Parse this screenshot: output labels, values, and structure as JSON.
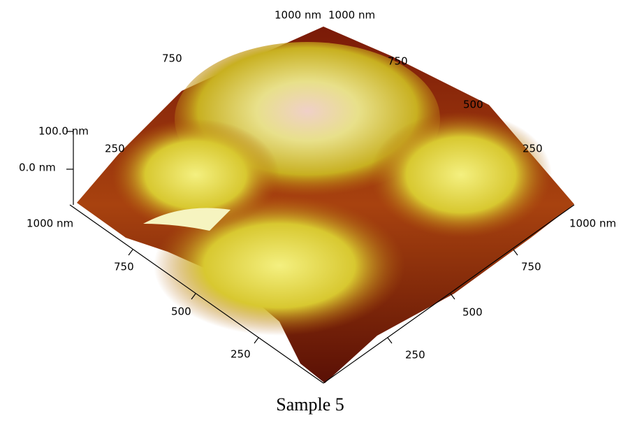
{
  "caption": "Sample 5",
  "z_axis": {
    "ticks": [
      "100.0 nm",
      "0.0 nm"
    ]
  },
  "front_left_axis": {
    "ticks": [
      "1000 nm",
      "750",
      "500",
      "250"
    ]
  },
  "front_right_axis": {
    "ticks": [
      "1000 nm",
      "750",
      "500",
      "250"
    ]
  },
  "back_left_axis": {
    "ticks": [
      "1000 nm",
      "750",
      "250"
    ]
  },
  "back_right_axis": {
    "ticks": [
      "1000 nm",
      "750",
      "500",
      "250"
    ]
  }
}
